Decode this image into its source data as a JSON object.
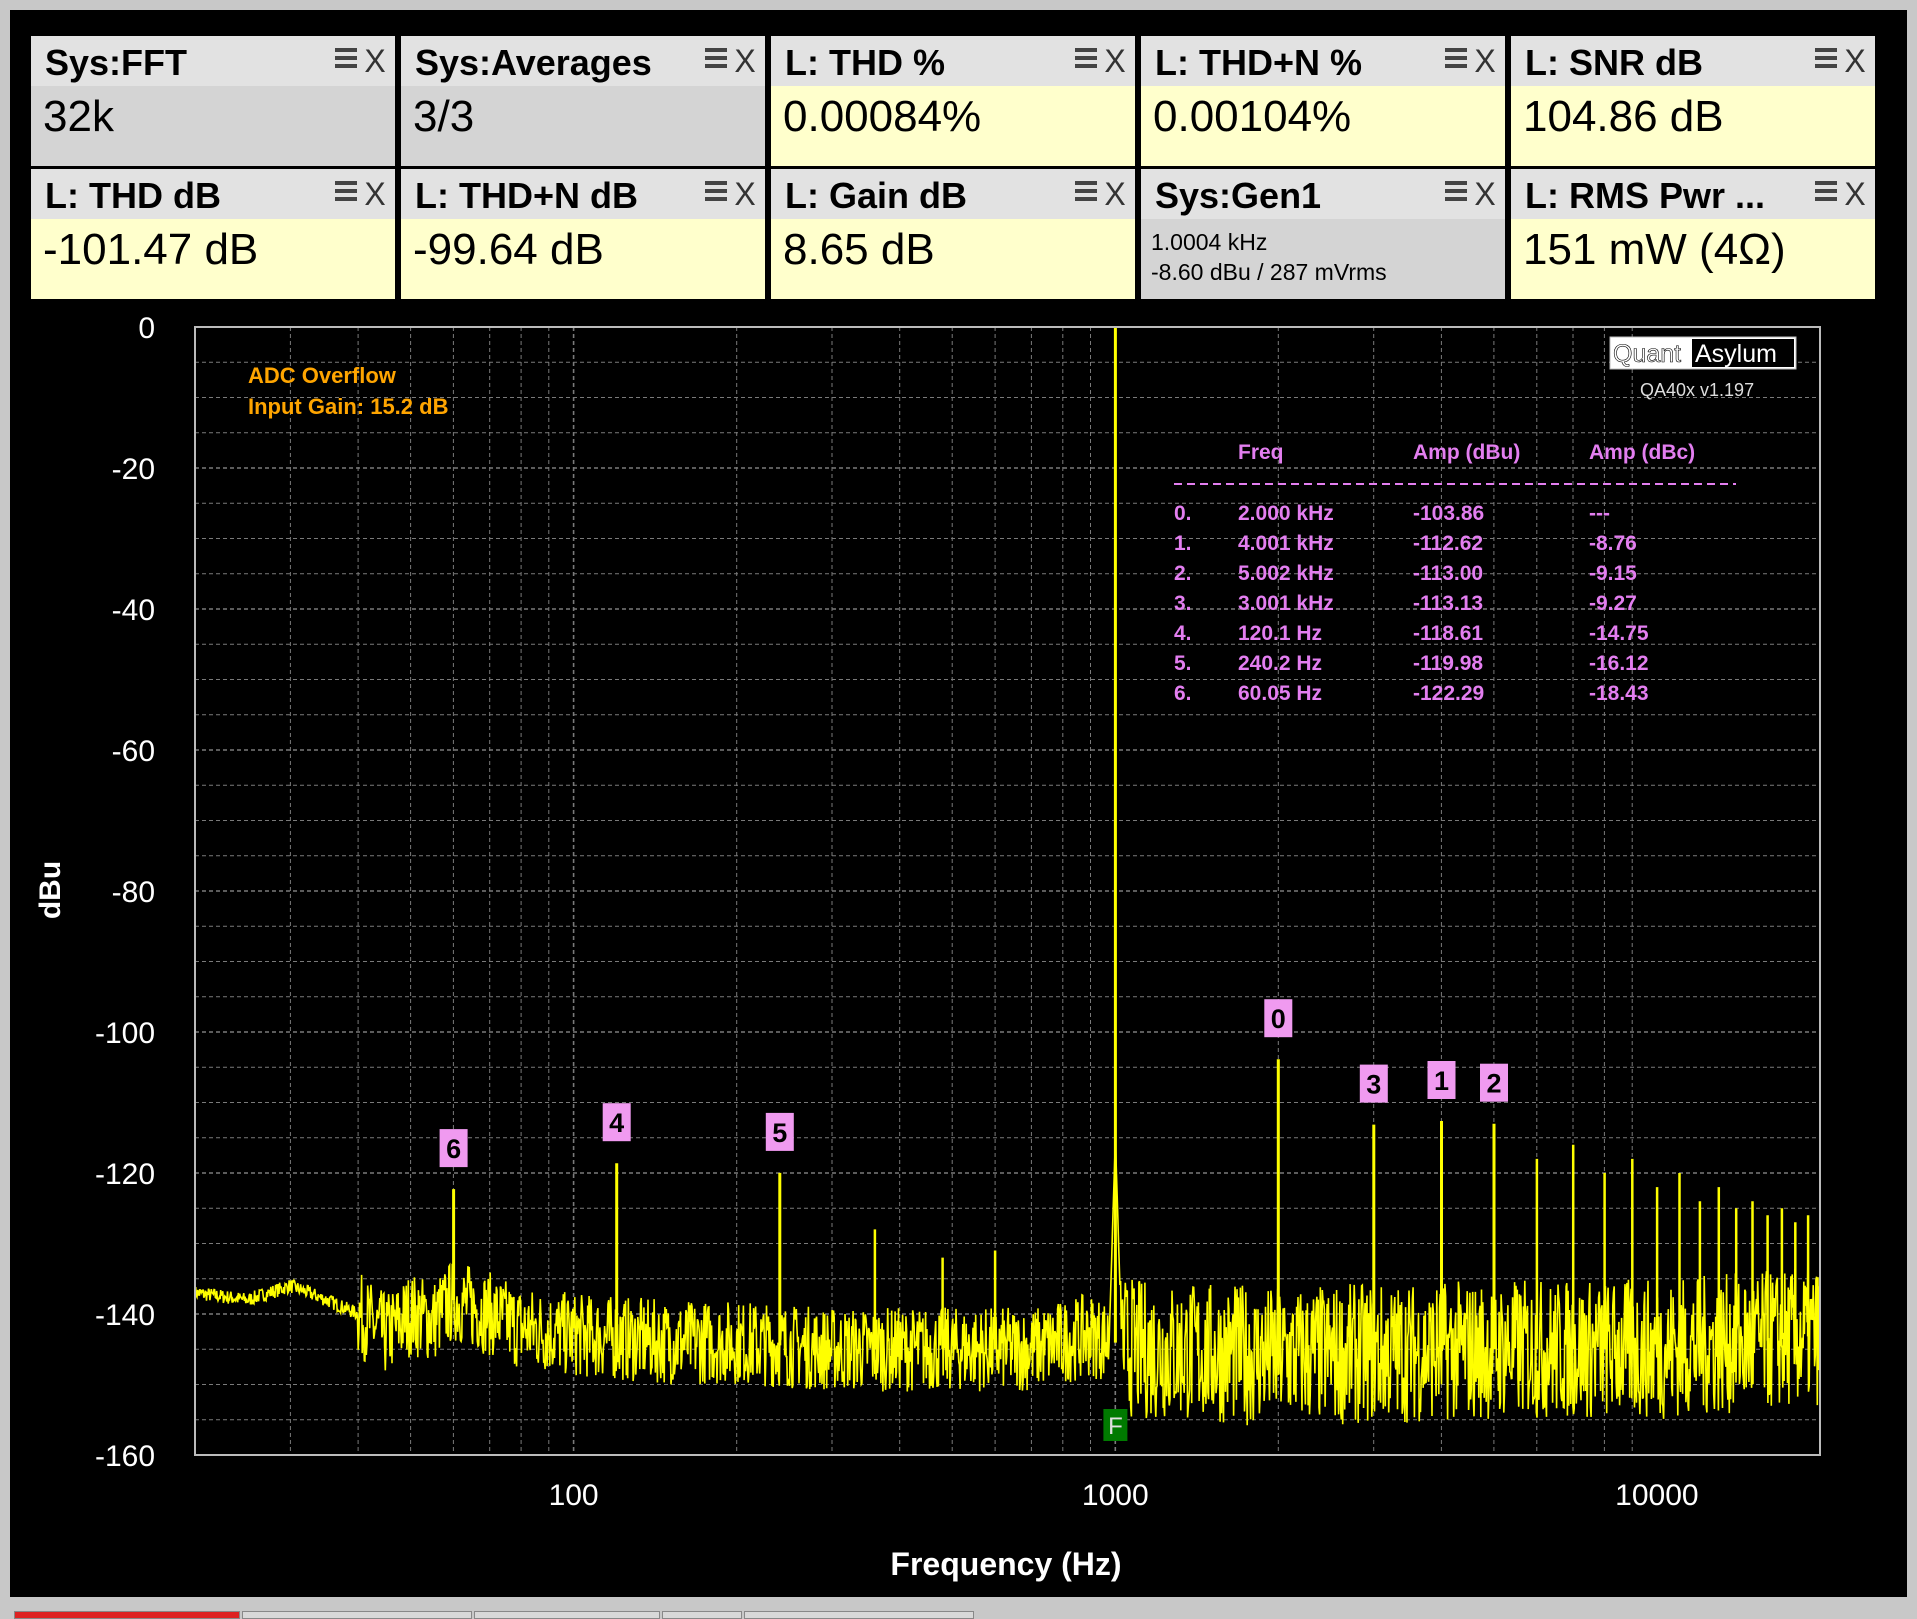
{
  "tiles": [
    {
      "title": "Sys:FFT",
      "value": "32k",
      "style": "grey"
    },
    {
      "title": "Sys:Averages",
      "value": "3/3",
      "style": "grey"
    },
    {
      "title": "L: THD %",
      "value": "0.00084%",
      "style": "yellow"
    },
    {
      "title": "L: THD+N %",
      "value": "0.00104%",
      "style": "yellow"
    },
    {
      "title": "L: SNR dB",
      "value": "104.86 dB",
      "style": "yellow"
    },
    {
      "title": "L: THD dB",
      "value": "-101.47 dB",
      "style": "yellow"
    },
    {
      "title": "L: THD+N dB",
      "value": "-99.64 dB",
      "style": "yellow"
    },
    {
      "title": "L: Gain dB",
      "value": "8.65 dB",
      "style": "yellow"
    },
    {
      "title": "Sys:Gen1",
      "line1": "1.0004 kHz",
      "line2": "-8.60 dBu  / 287 mVrms",
      "style": "grey"
    },
    {
      "title": "L: RMS Pwr ...",
      "value": "151 mW (4Ω)",
      "style": "yellow"
    }
  ],
  "tile_icons": {
    "menu": "menu-lines-icon",
    "close": "close-icon",
    "close_glyph": "X"
  },
  "plot": {
    "status_line1": "ADC Overflow",
    "status_line2": "Input Gain: 15.2 dB",
    "logo_part1": "Quant",
    "logo_part2": "Asylum",
    "version": "QA40x v1.197",
    "fundamental_marker": "F"
  },
  "peak_table": {
    "headers": [
      "Freq",
      "Amp (dBu)",
      "Amp (dBc)"
    ],
    "rows": [
      {
        "idx": "0.",
        "freq": "2.000 kHz",
        "dbu": "-103.86",
        "dbc": "---"
      },
      {
        "idx": "1.",
        "freq": "4.001 kHz",
        "dbu": "-112.62",
        "dbc": "-8.76"
      },
      {
        "idx": "2.",
        "freq": "5.002 kHz",
        "dbu": "-113.00",
        "dbc": "-9.15"
      },
      {
        "idx": "3.",
        "freq": "3.001 kHz",
        "dbu": "-113.13",
        "dbc": "-9.27"
      },
      {
        "idx": "4.",
        "freq": "120.1 Hz",
        "dbu": "-118.61",
        "dbc": "-14.75"
      },
      {
        "idx": "5.",
        "freq": "240.2 Hz",
        "dbu": "-119.98",
        "dbc": "-16.12"
      },
      {
        "idx": "6.",
        "freq": "60.05 Hz",
        "dbu": "-122.29",
        "dbc": "-18.43"
      }
    ]
  },
  "colors": {
    "trace": "#ffff00",
    "grid": "#7a7a7a",
    "status_text": "#ffa500",
    "table_text": "#e37ef0",
    "marker_bg": "#f09af0",
    "fund_marker_bg": "#007a00"
  },
  "chart_data": {
    "type": "line",
    "xlabel": "Frequency (Hz)",
    "ylabel": "dBu",
    "x_scale": "log",
    "xlim": [
      20,
      20000
    ],
    "ylim": [
      -160,
      0
    ],
    "x_ticks": [
      100,
      1000,
      10000
    ],
    "x_tick_labels": [
      "100",
      "1000",
      "10000"
    ],
    "y_ticks": [
      0,
      -20,
      -40,
      -60,
      -80,
      -100,
      -120,
      -140,
      -160
    ],
    "y_tick_labels": [
      "0",
      "-20",
      "-40",
      "-60",
      "-80",
      "-100",
      "-120",
      "-140",
      "-160"
    ],
    "grid": true,
    "noise_floor": [
      [
        20,
        -137
      ],
      [
        25,
        -138
      ],
      [
        30,
        -136
      ],
      [
        35,
        -138
      ],
      [
        40,
        -140
      ],
      [
        45,
        -143
      ],
      [
        50,
        -140
      ],
      [
        55,
        -141
      ],
      [
        60,
        -138
      ],
      [
        70,
        -140
      ],
      [
        80,
        -142
      ],
      [
        100,
        -143
      ],
      [
        150,
        -144
      ],
      [
        200,
        -144
      ],
      [
        300,
        -145
      ],
      [
        500,
        -145
      ],
      [
        700,
        -145
      ],
      [
        900,
        -143
      ],
      [
        1100,
        -145
      ],
      [
        2000,
        -146
      ],
      [
        5000,
        -145
      ],
      [
        10000,
        -145
      ],
      [
        15000,
        -144
      ],
      [
        20000,
        -143
      ]
    ],
    "fundamental": {
      "freq": 1000.4,
      "dbu": 0
    },
    "harmonic_peaks": [
      {
        "label": "0",
        "freq": 2000,
        "dbu": -103.86
      },
      {
        "label": "1",
        "freq": 4001,
        "dbu": -112.62
      },
      {
        "label": "2",
        "freq": 5002,
        "dbu": -113.0
      },
      {
        "label": "3",
        "freq": 3001,
        "dbu": -113.13
      },
      {
        "label": "4",
        "freq": 120.1,
        "dbu": -118.61
      },
      {
        "label": "5",
        "freq": 240.2,
        "dbu": -119.98
      },
      {
        "label": "6",
        "freq": 60.05,
        "dbu": -122.29
      }
    ],
    "other_spurs": [
      {
        "freq": 360,
        "dbu": -128
      },
      {
        "freq": 480,
        "dbu": -132
      },
      {
        "freq": 600,
        "dbu": -131
      },
      {
        "freq": 6003,
        "dbu": -118
      },
      {
        "freq": 7004,
        "dbu": -116
      },
      {
        "freq": 8004,
        "dbu": -120
      },
      {
        "freq": 9005,
        "dbu": -118
      },
      {
        "freq": 10005,
        "dbu": -122
      },
      {
        "freq": 11006,
        "dbu": -120
      },
      {
        "freq": 12006,
        "dbu": -124
      },
      {
        "freq": 13007,
        "dbu": -122
      },
      {
        "freq": 14007,
        "dbu": -125
      },
      {
        "freq": 15008,
        "dbu": -124
      },
      {
        "freq": 16008,
        "dbu": -126
      },
      {
        "freq": 17009,
        "dbu": -125
      },
      {
        "freq": 18009,
        "dbu": -127
      },
      {
        "freq": 19010,
        "dbu": -126
      }
    ]
  }
}
